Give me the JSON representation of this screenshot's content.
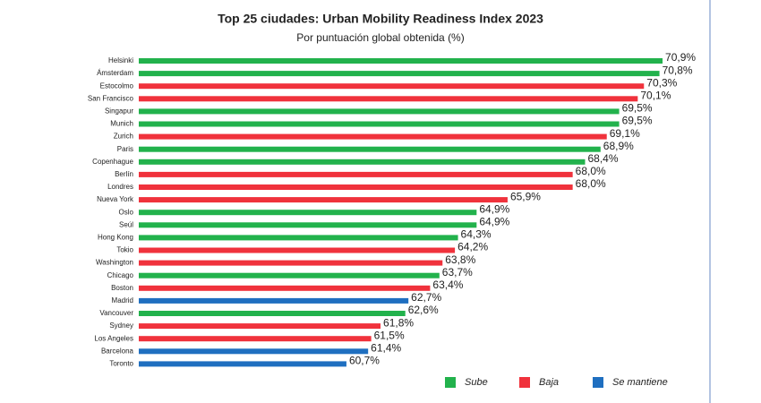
{
  "chart_data": {
    "type": "bar",
    "orientation": "horizontal",
    "title": "Top 25 ciudades: Urban Mobility Readiness Index 2023",
    "subtitle": "Por puntuación global obtenida (%)",
    "categories": [
      "Helsinki",
      "Ámsterdam",
      "Estocolmo",
      "San Francisco",
      "Singapur",
      "Munich",
      "Zurich",
      "Paris",
      "Copenhague",
      "Berlín",
      "Londres",
      "Nueva York",
      "Oslo",
      "Seúl",
      "Hong Kong",
      "Tokio",
      "Washington",
      "Chicago",
      "Boston",
      "Madrid",
      "Vancouver",
      "Sydney",
      "Los Angeles",
      "Barcelona",
      "Toronto"
    ],
    "xlim": [
      54,
      71
    ],
    "series": [
      {
        "name": "Sube",
        "color": "#22b24c",
        "values": [
          70.9,
          70.8,
          null,
          null,
          69.5,
          69.5,
          null,
          68.9,
          68.4,
          null,
          null,
          null,
          64.9,
          64.9,
          64.3,
          null,
          null,
          63.7,
          null,
          null,
          62.6,
          null,
          null,
          null,
          null
        ],
        "value_labels": [
          "70,9%",
          "70,8%",
          null,
          null,
          "69,5%",
          "69,5%",
          null,
          "68,9%",
          "68,4%",
          null,
          null,
          null,
          "64,9%",
          "64,9%",
          "64,3%",
          null,
          null,
          "63,7%",
          null,
          null,
          "62,6%",
          null,
          null,
          null,
          null
        ]
      },
      {
        "name": "Baja",
        "color": "#f0323c",
        "values": [
          null,
          null,
          70.3,
          70.1,
          null,
          null,
          69.1,
          null,
          null,
          68.0,
          68.0,
          65.9,
          null,
          null,
          null,
          64.2,
          63.8,
          null,
          63.4,
          null,
          null,
          61.8,
          61.5,
          null,
          null
        ],
        "value_labels": [
          null,
          null,
          "70,3%",
          "70,1%",
          null,
          null,
          "69,1%",
          null,
          null,
          "68,0%",
          "68,0%",
          "65,9%",
          null,
          null,
          null,
          "64,2%",
          "63,8%",
          null,
          "63,4%",
          null,
          null,
          "61,8%",
          "61,5%",
          null,
          null
        ]
      },
      {
        "name": "Se mantiene",
        "color": "#1f6fc0",
        "values": [
          null,
          null,
          null,
          null,
          null,
          null,
          null,
          null,
          null,
          null,
          null,
          null,
          null,
          null,
          null,
          null,
          null,
          null,
          null,
          62.7,
          null,
          null,
          null,
          61.4,
          60.7
        ],
        "value_labels": [
          null,
          null,
          null,
          null,
          null,
          null,
          null,
          null,
          null,
          null,
          null,
          null,
          null,
          null,
          null,
          null,
          null,
          null,
          null,
          "62,7%",
          null,
          null,
          null,
          "61,4%",
          "60,7%"
        ]
      }
    ]
  }
}
